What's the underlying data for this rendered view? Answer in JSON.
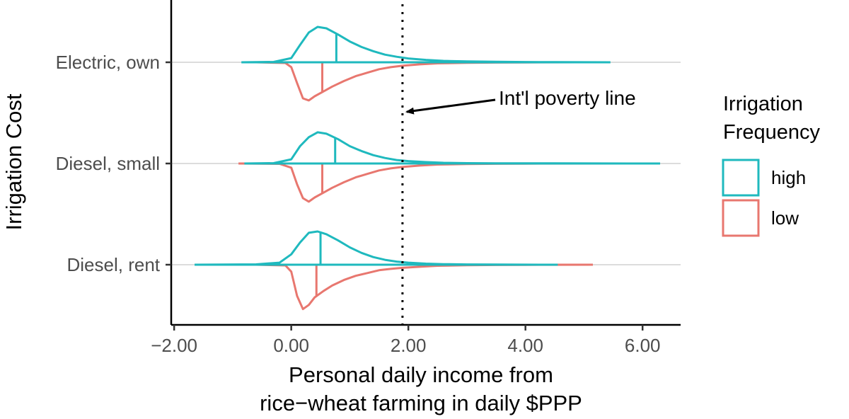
{
  "chart_data": {
    "type": "violin",
    "title": "",
    "xlabel": "Personal daily income from",
    "xlabel2": "rice−wheat farming in daily $PPP",
    "ylabel": "Irrigation Cost",
    "xlim": [
      -2.05,
      6.65
    ],
    "x_ticks": [
      -2,
      0,
      2,
      4,
      6
    ],
    "x_tick_labels": [
      "−2.00",
      "0.00",
      "2.00",
      "4.00",
      "6.00"
    ],
    "categories": [
      "Electric, own",
      "Diesel, small",
      "Diesel, rent"
    ],
    "grid": "horizontal major lines at categories",
    "legend": {
      "title_line1": "Irrigation",
      "title_line2": "Frequency",
      "placement": "right",
      "entries": [
        {
          "label": "high",
          "color": "#1fb9be"
        },
        {
          "label": "low",
          "color": "#e8776f"
        }
      ]
    },
    "reference_line": {
      "x": 1.9,
      "style": "dotted",
      "label": "Int'l poverty line",
      "label_x": 3.55,
      "arrow_to_x": 1.9
    },
    "series": [
      {
        "name": "high",
        "color": "#1fb9be",
        "side": "above",
        "groups": [
          {
            "category": "Electric, own",
            "min": -0.85,
            "max": 5.45,
            "median": 0.77,
            "density": [
              [
                -0.85,
                0
              ],
              [
                -0.3,
                0.005
              ],
              [
                0,
                0.06
              ],
              [
                0.15,
                0.25
              ],
              [
                0.3,
                0.43
              ],
              [
                0.45,
                0.51
              ],
              [
                0.6,
                0.49
              ],
              [
                0.8,
                0.4
              ],
              [
                1.0,
                0.3
              ],
              [
                1.2,
                0.22
              ],
              [
                1.4,
                0.16
              ],
              [
                1.6,
                0.11
              ],
              [
                1.8,
                0.08
              ],
              [
                2.0,
                0.055
              ],
              [
                2.3,
                0.035
              ],
              [
                2.6,
                0.02
              ],
              [
                3.0,
                0.012
              ],
              [
                3.5,
                0.007
              ],
              [
                4.0,
                0.004
              ],
              [
                4.5,
                0.002
              ],
              [
                5.45,
                0
              ]
            ]
          },
          {
            "category": "Diesel, small",
            "min": -0.8,
            "max": 6.3,
            "median": 0.75,
            "density": [
              [
                -0.8,
                0
              ],
              [
                -0.3,
                0.005
              ],
              [
                0,
                0.06
              ],
              [
                0.15,
                0.25
              ],
              [
                0.3,
                0.38
              ],
              [
                0.45,
                0.45
              ],
              [
                0.6,
                0.43
              ],
              [
                0.8,
                0.35
              ],
              [
                1.0,
                0.25
              ],
              [
                1.2,
                0.18
              ],
              [
                1.4,
                0.12
              ],
              [
                1.6,
                0.08
              ],
              [
                1.8,
                0.05
              ],
              [
                2.0,
                0.035
              ],
              [
                2.3,
                0.02
              ],
              [
                2.6,
                0.01
              ],
              [
                3.0,
                0.005
              ],
              [
                3.5,
                0.003
              ],
              [
                4.5,
                0.002
              ],
              [
                6.3,
                0
              ]
            ]
          },
          {
            "category": "Diesel, rent",
            "min": -1.65,
            "max": 4.55,
            "median": 0.5,
            "density": [
              [
                -1.65,
                0
              ],
              [
                -0.6,
                0.005
              ],
              [
                -0.2,
                0.03
              ],
              [
                0,
                0.15
              ],
              [
                0.15,
                0.32
              ],
              [
                0.3,
                0.46
              ],
              [
                0.45,
                0.48
              ],
              [
                0.6,
                0.44
              ],
              [
                0.8,
                0.35
              ],
              [
                1.0,
                0.25
              ],
              [
                1.2,
                0.17
              ],
              [
                1.4,
                0.11
              ],
              [
                1.6,
                0.07
              ],
              [
                1.8,
                0.045
              ],
              [
                2.0,
                0.03
              ],
              [
                2.3,
                0.015
              ],
              [
                2.6,
                0.008
              ],
              [
                3.0,
                0.004
              ],
              [
                3.5,
                0.002
              ],
              [
                4.55,
                0
              ]
            ]
          }
        ]
      },
      {
        "name": "low",
        "color": "#e8776f",
        "side": "below",
        "groups": [
          {
            "category": "Electric, own",
            "min": -0.6,
            "max": 4.9,
            "median": 0.53,
            "density": [
              [
                -0.6,
                0
              ],
              [
                -0.1,
                0.01
              ],
              [
                0,
                0.07
              ],
              [
                0.1,
                0.3
              ],
              [
                0.2,
                0.52
              ],
              [
                0.3,
                0.55
              ],
              [
                0.4,
                0.49
              ],
              [
                0.55,
                0.42
              ],
              [
                0.7,
                0.35
              ],
              [
                0.9,
                0.27
              ],
              [
                1.1,
                0.2
              ],
              [
                1.3,
                0.15
              ],
              [
                1.5,
                0.1
              ],
              [
                1.7,
                0.07
              ],
              [
                1.9,
                0.05
              ],
              [
                2.2,
                0.03
              ],
              [
                2.5,
                0.015
              ],
              [
                3.0,
                0.008
              ],
              [
                3.5,
                0.004
              ],
              [
                4.0,
                0.002
              ],
              [
                4.9,
                0
              ]
            ]
          },
          {
            "category": "Diesel, small",
            "min": -0.9,
            "max": 5.8,
            "median": 0.53,
            "density": [
              [
                -0.9,
                0
              ],
              [
                -0.2,
                0.005
              ],
              [
                0,
                0.06
              ],
              [
                0.1,
                0.3
              ],
              [
                0.2,
                0.5
              ],
              [
                0.3,
                0.55
              ],
              [
                0.4,
                0.49
              ],
              [
                0.55,
                0.42
              ],
              [
                0.7,
                0.35
              ],
              [
                0.9,
                0.27
              ],
              [
                1.1,
                0.2
              ],
              [
                1.3,
                0.15
              ],
              [
                1.5,
                0.1
              ],
              [
                1.7,
                0.07
              ],
              [
                1.9,
                0.05
              ],
              [
                2.2,
                0.03
              ],
              [
                2.5,
                0.015
              ],
              [
                3.0,
                0.008
              ],
              [
                3.5,
                0.004
              ],
              [
                4.0,
                0.002
              ],
              [
                5.8,
                0
              ]
            ]
          },
          {
            "category": "Diesel, rent",
            "min": -0.6,
            "max": 5.15,
            "median": 0.43,
            "density": [
              [
                -0.6,
                0
              ],
              [
                -0.1,
                0.01
              ],
              [
                0,
                0.1
              ],
              [
                0.1,
                0.45
              ],
              [
                0.2,
                0.64
              ],
              [
                0.3,
                0.58
              ],
              [
                0.4,
                0.47
              ],
              [
                0.55,
                0.38
              ],
              [
                0.7,
                0.3
              ],
              [
                0.9,
                0.22
              ],
              [
                1.1,
                0.16
              ],
              [
                1.3,
                0.12
              ],
              [
                1.5,
                0.08
              ],
              [
                1.7,
                0.06
              ],
              [
                1.9,
                0.045
              ],
              [
                2.2,
                0.03
              ],
              [
                2.5,
                0.015
              ],
              [
                3.0,
                0.008
              ],
              [
                3.5,
                0.004
              ],
              [
                4.0,
                0.002
              ],
              [
                4.5,
                0.001
              ],
              [
                5.15,
                0
              ]
            ]
          }
        ]
      }
    ]
  }
}
